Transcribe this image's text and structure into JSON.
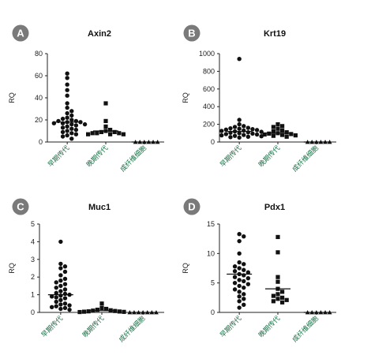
{
  "colors": {
    "badge": "#7a7a7a",
    "marker": "#111111",
    "category_text": "#1a6b43",
    "axis": "#222222"
  },
  "chart_data": [
    {
      "type": "scatter",
      "subtype": "column-scatter",
      "badge": "A",
      "title": "Axin2",
      "ylabel": "RQ",
      "ylim": [
        0,
        80
      ],
      "yticks": [
        "0",
        "20",
        "40",
        "60",
        "80"
      ],
      "categories": [
        "早期传代",
        "晚期传代",
        "成纤维细胞"
      ],
      "markers": [
        "circle",
        "square",
        "triangle"
      ],
      "series": [
        {
          "values": [
            62,
            58,
            52,
            47,
            42,
            35,
            31,
            28,
            26,
            24,
            22,
            21,
            20,
            19,
            19,
            18,
            18,
            17,
            17,
            16,
            16,
            15,
            14,
            13,
            12,
            11,
            10,
            9,
            8,
            7,
            6,
            5,
            3
          ],
          "mean": 18
        },
        {
          "values": [
            35,
            19,
            14,
            11,
            10,
            9,
            9,
            8,
            8,
            8,
            7,
            7,
            7
          ],
          "mean": 10
        },
        {
          "values": [
            0,
            0,
            0,
            0,
            0,
            0
          ],
          "mean": 0
        }
      ]
    },
    {
      "type": "scatter",
      "subtype": "column-scatter",
      "badge": "B",
      "title": "Krt19",
      "ylabel": "RQ",
      "ylim": [
        0,
        1000
      ],
      "yticks": [
        "0",
        "200",
        "400",
        "600",
        "800",
        "1000"
      ],
      "categories": [
        "早期传代",
        "晚期传代",
        "成纤维细胞"
      ],
      "markers": [
        "circle",
        "square",
        "triangle"
      ],
      "series": [
        {
          "values": [
            940,
            250,
            200,
            180,
            170,
            160,
            155,
            150,
            145,
            140,
            135,
            130,
            125,
            120,
            115,
            110,
            105,
            100,
            95,
            90,
            85,
            80,
            75,
            70,
            65,
            60,
            55,
            50
          ],
          "mean": 120
        },
        {
          "values": [
            200,
            180,
            170,
            150,
            130,
            120,
            110,
            100,
            95,
            90,
            85,
            80,
            75,
            70,
            60
          ],
          "mean": 100
        },
        {
          "values": [
            0,
            0,
            0,
            0,
            0,
            0
          ],
          "mean": 0
        }
      ]
    },
    {
      "type": "scatter",
      "subtype": "column-scatter",
      "badge": "C",
      "title": "Muc1",
      "ylabel": "RQ",
      "ylim": [
        0,
        5
      ],
      "yticks": [
        "0",
        "1",
        "2",
        "3",
        "4",
        "5"
      ],
      "categories": [
        "早期传代",
        "晚期传代",
        "成纤维细胞"
      ],
      "markers": [
        "circle",
        "square",
        "triangle"
      ],
      "series": [
        {
          "values": [
            4.0,
            2.75,
            2.6,
            2.5,
            2.3,
            2.1,
            1.9,
            1.8,
            1.7,
            1.6,
            1.5,
            1.4,
            1.3,
            1.2,
            1.1,
            1.05,
            1.0,
            0.95,
            0.9,
            0.85,
            0.8,
            0.7,
            0.6,
            0.5,
            0.45,
            0.4,
            0.35,
            0.3,
            0.25,
            0.2,
            0.15
          ],
          "mean": 1.0
        },
        {
          "values": [
            0.5,
            0.25,
            0.2,
            0.15,
            0.12,
            0.1,
            0.08,
            0.06,
            0.05,
            0.04,
            0.03,
            0.02
          ],
          "mean": 0.1
        },
        {
          "values": [
            0,
            0,
            0,
            0,
            0,
            0,
            0
          ],
          "mean": 0
        }
      ]
    },
    {
      "type": "scatter",
      "subtype": "column-scatter",
      "badge": "D",
      "title": "Pdx1",
      "ylabel": "RQ",
      "ylim": [
        0,
        15
      ],
      "yticks": [
        "0",
        "5",
        "10",
        "15"
      ],
      "categories": [
        "早期传代",
        "晚期传代",
        "成纤维细胞"
      ],
      "markers": [
        "circle",
        "square",
        "triangle"
      ],
      "series": [
        {
          "values": [
            13.3,
            12.9,
            12.1,
            10.0,
            8.5,
            8.2,
            7.8,
            7.5,
            7.2,
            7.0,
            6.8,
            6.5,
            6.3,
            6.0,
            5.8,
            5.5,
            5.3,
            5.0,
            4.8,
            4.5,
            4.2,
            3.9,
            3.5,
            3.1,
            2.7,
            2.3,
            1.9,
            1.3,
            0.8
          ],
          "mean": 6.5
        },
        {
          "values": [
            12.8,
            10.2,
            6.0,
            5.2,
            4.0,
            3.5,
            3.1,
            2.8,
            2.5,
            2.3,
            2.1,
            1.9,
            1.7
          ],
          "mean": 4.0
        },
        {
          "values": [
            0,
            0,
            0,
            0,
            0,
            0
          ],
          "mean": 0
        }
      ]
    }
  ]
}
